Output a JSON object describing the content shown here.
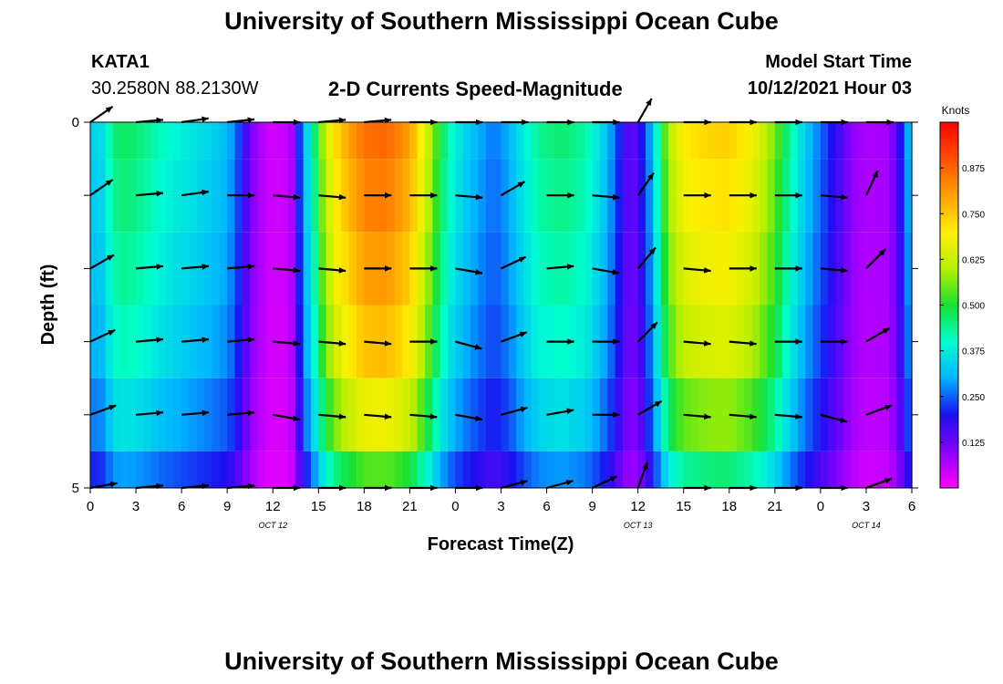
{
  "page": {
    "title_top": "University of Southern Mississippi Ocean Cube",
    "title_bottom": "University of Southern Mississippi Ocean Cube",
    "station": "KATA1",
    "coordinates": "30.2580N  88.2130W",
    "plot_title": "2-D Currents Speed-Magnitude",
    "model_start_label": "Model Start Time",
    "model_start_value": "10/12/2021 Hour 03"
  },
  "chart_data": {
    "type": "heatmap",
    "title": "2-D Currents Speed-Magnitude",
    "xlabel": "Forecast Time(Z)",
    "ylabel": "Depth (ft)",
    "x_hours_since_oct12_00z": [
      0,
      3,
      6,
      9,
      12,
      15,
      18,
      21,
      24,
      27,
      30,
      33,
      36,
      39,
      42,
      45,
      48,
      51,
      54
    ],
    "x_tick_labels": [
      "0",
      "3",
      "6",
      "9",
      "12",
      "15",
      "18",
      "21",
      "0",
      "3",
      "6",
      "9",
      "12",
      "15",
      "18",
      "21",
      "0",
      "3",
      "6"
    ],
    "xlim": [
      0,
      54
    ],
    "date_labels": [
      {
        "text": "OCT 12",
        "hour": 12
      },
      {
        "text": "OCT 13",
        "hour": 36
      },
      {
        "text": "OCT 14",
        "hour": 51
      }
    ],
    "y_tick_labels": [
      "0",
      "5"
    ],
    "ylim": [
      0,
      5
    ],
    "depth_levels": [
      0,
      1,
      2,
      3,
      4,
      5
    ],
    "colorbar": {
      "label": "Knots",
      "range": [
        0,
        1.0
      ],
      "tick_labels": [
        "0.875",
        "0.750",
        "0.625",
        "0.500",
        "0.375",
        "0.250",
        "0.125"
      ],
      "tick_values": [
        0.875,
        0.75,
        0.625,
        0.5,
        0.375,
        0.25,
        0.125
      ],
      "colors": [
        "#ff00ff",
        "#8a00ff",
        "#1a10f0",
        "#00b4ff",
        "#00ffd0",
        "#18e030",
        "#b8f000",
        "#fff000",
        "#ffa000",
        "#ff5000",
        "#ff0000"
      ]
    },
    "speed_profile_knots": [
      {
        "h": 0.0,
        "v": 0.36
      },
      {
        "h": 0.5,
        "v": 0.33
      },
      {
        "h": 1.0,
        "v": 0.38
      },
      {
        "h": 1.5,
        "v": 0.45
      },
      {
        "h": 2.0,
        "v": 0.47
      },
      {
        "h": 3.0,
        "v": 0.46
      },
      {
        "h": 4.0,
        "v": 0.43
      },
      {
        "h": 5.0,
        "v": 0.4
      },
      {
        "h": 6.5,
        "v": 0.37
      },
      {
        "h": 8.0,
        "v": 0.34
      },
      {
        "h": 9.0,
        "v": 0.31
      },
      {
        "h": 9.5,
        "v": 0.27
      },
      {
        "h": 10.0,
        "v": 0.2
      },
      {
        "h": 10.5,
        "v": 0.12
      },
      {
        "h": 11.5,
        "v": 0.05
      },
      {
        "h": 12.5,
        "v": 0.04
      },
      {
        "h": 13.2,
        "v": 0.06
      },
      {
        "h": 13.6,
        "v": 0.18
      },
      {
        "h": 14.0,
        "v": 0.3
      },
      {
        "h": 14.5,
        "v": 0.4
      },
      {
        "h": 15.0,
        "v": 0.52
      },
      {
        "h": 15.5,
        "v": 0.64
      },
      {
        "h": 16.5,
        "v": 0.76
      },
      {
        "h": 18.0,
        "v": 0.86
      },
      {
        "h": 19.5,
        "v": 0.87
      },
      {
        "h": 21.0,
        "v": 0.8
      },
      {
        "h": 22.0,
        "v": 0.66
      },
      {
        "h": 22.8,
        "v": 0.52
      },
      {
        "h": 23.5,
        "v": 0.42
      },
      {
        "h": 24.5,
        "v": 0.35
      },
      {
        "h": 25.5,
        "v": 0.3
      },
      {
        "h": 26.5,
        "v": 0.26
      },
      {
        "h": 27.5,
        "v": 0.3
      },
      {
        "h": 28.5,
        "v": 0.38
      },
      {
        "h": 29.5,
        "v": 0.44
      },
      {
        "h": 31.0,
        "v": 0.46
      },
      {
        "h": 32.5,
        "v": 0.43
      },
      {
        "h": 33.5,
        "v": 0.36
      },
      {
        "h": 34.5,
        "v": 0.26
      },
      {
        "h": 35.0,
        "v": 0.17
      },
      {
        "h": 35.6,
        "v": 0.13
      },
      {
        "h": 36.3,
        "v": 0.2
      },
      {
        "h": 37.0,
        "v": 0.33
      },
      {
        "h": 37.5,
        "v": 0.48
      },
      {
        "h": 38.0,
        "v": 0.6
      },
      {
        "h": 39.0,
        "v": 0.7
      },
      {
        "h": 40.5,
        "v": 0.73
      },
      {
        "h": 42.0,
        "v": 0.74
      },
      {
        "h": 43.5,
        "v": 0.68
      },
      {
        "h": 45.0,
        "v": 0.56
      },
      {
        "h": 46.0,
        "v": 0.43
      },
      {
        "h": 47.0,
        "v": 0.33
      },
      {
        "h": 48.0,
        "v": 0.26
      },
      {
        "h": 49.0,
        "v": 0.18
      },
      {
        "h": 50.0,
        "v": 0.1
      },
      {
        "h": 51.0,
        "v": 0.07
      },
      {
        "h": 52.5,
        "v": 0.08
      },
      {
        "h": 53.3,
        "v": 0.2
      },
      {
        "h": 54.0,
        "v": 0.35
      }
    ],
    "depth_factor": [
      1.0,
      0.97,
      0.93,
      0.88,
      0.78,
      0.62
    ],
    "vector_hours": [
      0,
      3,
      6,
      9,
      12,
      15,
      18,
      21,
      24,
      27,
      30,
      33,
      36,
      39,
      42,
      45,
      48,
      51
    ],
    "vector_directions_deg": [
      [
        35,
        5,
        8,
        6,
        0,
        5,
        5,
        0,
        0,
        0,
        0,
        0,
        60,
        0,
        0,
        0,
        0,
        0
      ],
      [
        35,
        5,
        8,
        0,
        -5,
        -5,
        0,
        0,
        -5,
        30,
        0,
        -5,
        55,
        0,
        0,
        0,
        -5,
        65
      ],
      [
        30,
        5,
        5,
        5,
        -5,
        -5,
        0,
        0,
        -10,
        25,
        5,
        -10,
        50,
        -5,
        0,
        0,
        -5,
        45
      ],
      [
        25,
        5,
        5,
        5,
        -5,
        -5,
        -5,
        0,
        -15,
        20,
        0,
        0,
        45,
        -5,
        -5,
        0,
        0,
        30
      ],
      [
        20,
        5,
        5,
        5,
        -10,
        -5,
        -5,
        -5,
        -10,
        15,
        10,
        0,
        30,
        -5,
        -5,
        -5,
        -15,
        20
      ],
      [
        10,
        5,
        5,
        5,
        0,
        0,
        0,
        0,
        0,
        15,
        15,
        25,
        70,
        0,
        0,
        0,
        0,
        20
      ]
    ]
  }
}
